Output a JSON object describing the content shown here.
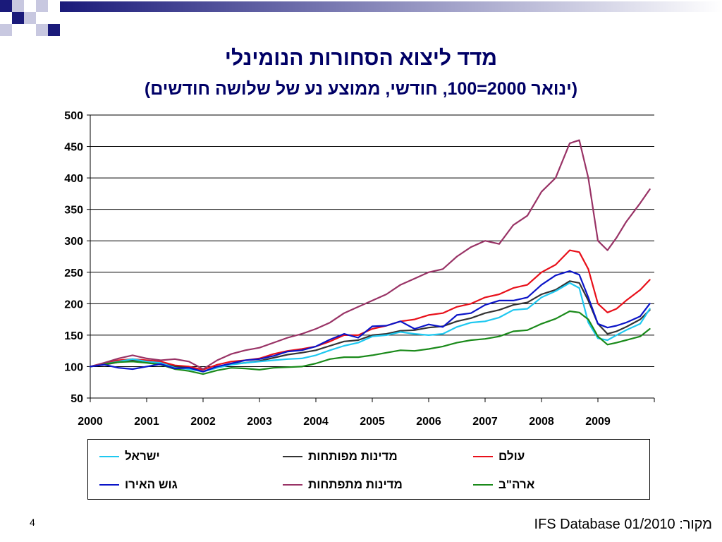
{
  "colors": {
    "deco_dark": "#1a1a7a",
    "deco_light": "#c8c8e0",
    "title": "#000066"
  },
  "title": "מדד ליצוא הסחורות הנומינלי",
  "subtitle": "(ינואר 2000=100, חודשי, ממוצע נע של שלושה חודשים)",
  "page_number": "4",
  "source": "מקור: IFS Database 01/2010",
  "chart_data": {
    "type": "line",
    "title": "מדד ליצוא הסחורות הנומינלי",
    "subtitle": "(ינואר 2000=100, חודשי, ממוצע נע של שלושה חודשים)",
    "xlabel": "",
    "ylabel": "",
    "xlim": [
      2000,
      2010
    ],
    "ylim": [
      50,
      500
    ],
    "x_ticks": [
      "2000",
      "2001",
      "2002",
      "2003",
      "2004",
      "2005",
      "2006",
      "2007",
      "2008",
      "2009"
    ],
    "y_ticks": [
      50,
      100,
      150,
      200,
      250,
      300,
      350,
      400,
      450,
      500
    ],
    "grid": "horizontal",
    "legend_position": "bottom",
    "x": [
      2000.0,
      2000.25,
      2000.5,
      2000.75,
      2001.0,
      2001.25,
      2001.5,
      2001.75,
      2002.0,
      2002.25,
      2002.5,
      2002.75,
      2003.0,
      2003.25,
      2003.5,
      2003.75,
      2004.0,
      2004.25,
      2004.5,
      2004.75,
      2005.0,
      2005.25,
      2005.5,
      2005.75,
      2006.0,
      2006.25,
      2006.5,
      2006.75,
      2007.0,
      2007.25,
      2007.5,
      2007.75,
      2008.0,
      2008.25,
      2008.5,
      2008.67,
      2008.83,
      2009.0,
      2009.17,
      2009.33,
      2009.5,
      2009.75,
      2009.92
    ],
    "series": [
      {
        "name": "עולם",
        "color": "#e8101a",
        "values": [
          100,
          105,
          110,
          112,
          110,
          108,
          102,
          100,
          95,
          103,
          108,
          110,
          113,
          120,
          125,
          128,
          132,
          140,
          150,
          150,
          160,
          165,
          172,
          175,
          182,
          185,
          195,
          200,
          210,
          215,
          225,
          230,
          250,
          262,
          285,
          282,
          255,
          200,
          186,
          192,
          205,
          222,
          238
        ]
      },
      {
        "name": "מדינות מפותחות",
        "color": "#333333",
        "values": [
          100,
          103,
          107,
          110,
          107,
          105,
          100,
          98,
          92,
          100,
          104,
          106,
          109,
          114,
          119,
          122,
          126,
          133,
          140,
          142,
          150,
          152,
          157,
          158,
          162,
          164,
          172,
          177,
          185,
          190,
          198,
          202,
          215,
          222,
          236,
          233,
          205,
          168,
          152,
          156,
          163,
          175,
          190
        ]
      },
      {
        "name": "ישראל",
        "color": "#1ec8f0",
        "values": [
          100,
          104,
          108,
          112,
          108,
          106,
          98,
          96,
          92,
          98,
          103,
          106,
          108,
          110,
          112,
          113,
          118,
          126,
          133,
          138,
          148,
          150,
          155,
          152,
          150,
          152,
          163,
          170,
          172,
          178,
          190,
          192,
          210,
          220,
          233,
          225,
          170,
          145,
          142,
          150,
          158,
          168,
          192
        ]
      },
      {
        "name": "ארה\"ב",
        "color": "#1a8a1a",
        "values": [
          100,
          104,
          107,
          108,
          106,
          103,
          96,
          93,
          88,
          94,
          98,
          97,
          95,
          98,
          99,
          100,
          105,
          112,
          115,
          115,
          118,
          122,
          126,
          125,
          128,
          132,
          138,
          142,
          144,
          148,
          156,
          158,
          168,
          176,
          188,
          186,
          175,
          148,
          135,
          138,
          142,
          148,
          160
        ]
      },
      {
        "name": "מדינות מתפתחות",
        "color": "#993366",
        "values": [
          100,
          106,
          113,
          118,
          113,
          110,
          112,
          108,
          96,
          110,
          120,
          126,
          130,
          138,
          146,
          152,
          160,
          170,
          185,
          195,
          205,
          215,
          230,
          240,
          250,
          255,
          275,
          290,
          300,
          295,
          325,
          340,
          378,
          400,
          455,
          460,
          400,
          300,
          285,
          305,
          330,
          360,
          382
        ]
      },
      {
        "name": "גוש האירו",
        "color": "#0a14c8",
        "values": [
          100,
          103,
          98,
          96,
          100,
          104,
          97,
          98,
          92,
          100,
          105,
          110,
          112,
          117,
          124,
          126,
          132,
          143,
          152,
          146,
          164,
          165,
          172,
          160,
          167,
          163,
          182,
          185,
          198,
          205,
          205,
          210,
          230,
          245,
          252,
          246,
          210,
          168,
          162,
          165,
          170,
          180,
          200
        ]
      }
    ]
  }
}
